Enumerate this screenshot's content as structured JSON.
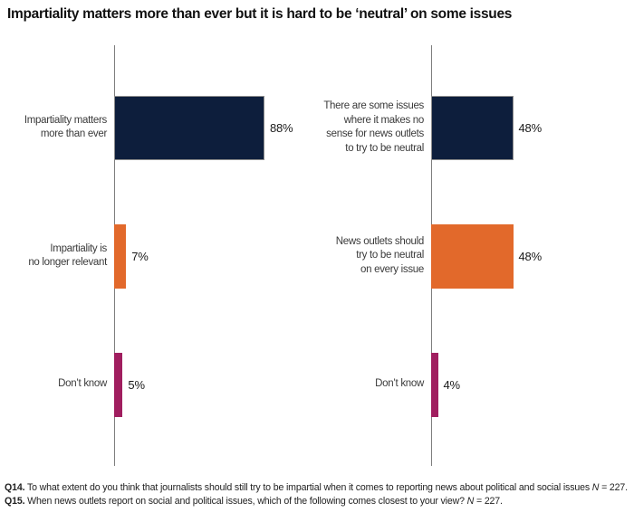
{
  "title": "Impartiality matters more than ever but it is hard to be ‘neutral’ on some issues",
  "colors": {
    "navy": "#0d1e3c",
    "orange": "#e2692b",
    "magenta": "#a01e5f",
    "axis_line": "#7e7e7e",
    "navy_bar_border": "#8c8c8c"
  },
  "chart_data": [
    {
      "type": "bar",
      "orientation": "horizontal",
      "categories": [
        "Impartiality matters\nmore than ever",
        "Impartiality is\nno longer relevant",
        "Don’t know"
      ],
      "values": [
        88,
        7,
        5
      ],
      "value_labels": [
        "88%",
        "7%",
        "5%"
      ],
      "colors": [
        "#0d1e3c",
        "#e2692b",
        "#a01e5f"
      ],
      "unit": "%",
      "axis_ticks_visible": false,
      "xlim": [
        0,
        100
      ]
    },
    {
      "type": "bar",
      "orientation": "horizontal",
      "categories": [
        "There are some issues\nwhere it makes no\nsense for news outlets\nto try to be neutral",
        "News outlets should\ntry to be neutral\non every issue",
        "Don’t know"
      ],
      "values": [
        48,
        48,
        4
      ],
      "value_labels": [
        "48%",
        "48%",
        "4%"
      ],
      "colors": [
        "#0d1e3c",
        "#e2692b",
        "#a01e5f"
      ],
      "unit": "%",
      "axis_ticks_visible": false,
      "xlim": [
        0,
        100
      ]
    }
  ],
  "footer": {
    "q14_label": "Q14.",
    "q14_text": "To what extent do you think that journalists should still try to be impartial when it comes to reporting news about political and social issues",
    "n1_symbol": "N",
    "n1_value": "= 227.",
    "q15_label": "Q15.",
    "q15_text": "When news outlets report on social and political issues, which of the following comes closest to your view?",
    "n2_symbol": "N",
    "n2_value": "= 227."
  }
}
